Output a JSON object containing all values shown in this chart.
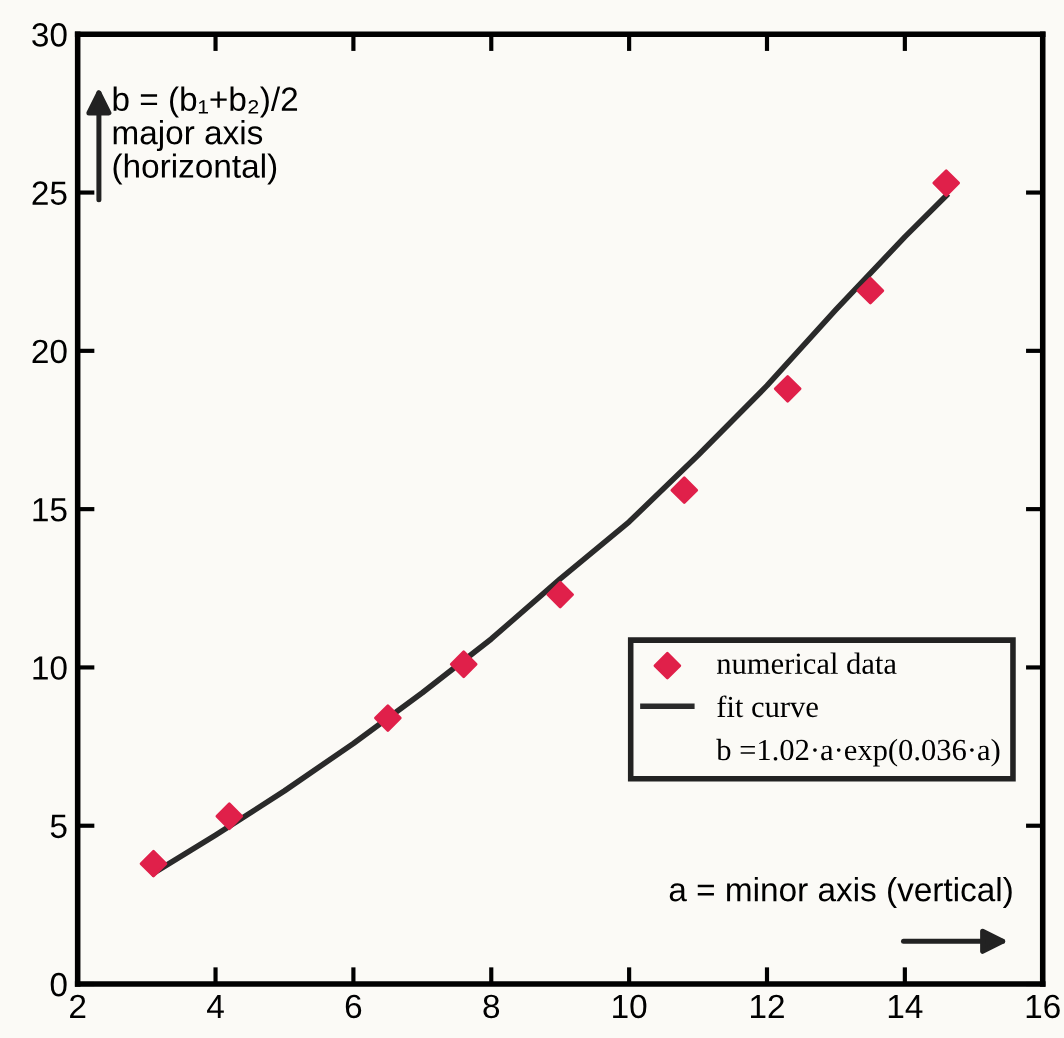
{
  "chart_data": {
    "type": "scatter",
    "xlabel": "a = minor axis (vertical)",
    "ylabel": "b = (b₁+b₂)/2\nmajor axis\n(horizontal)",
    "xlim": [
      2,
      16
    ],
    "ylim": [
      0,
      30
    ],
    "xticks": [
      2,
      4,
      6,
      8,
      10,
      12,
      14,
      16
    ],
    "yticks": [
      0,
      5,
      10,
      15,
      20,
      25,
      30
    ],
    "grid": false,
    "legend": "bottom right",
    "annotations": [
      "b =1.02·a·exp(0.036·a)"
    ],
    "series": [
      {
        "name": "numerical data",
        "marker": "diamond",
        "color": "#e0204a",
        "x": [
          3.1,
          4.2,
          6.5,
          7.6,
          9.0,
          10.8,
          12.3,
          13.5,
          14.6
        ],
        "values": [
          3.8,
          5.3,
          8.4,
          10.1,
          12.3,
          15.6,
          18.8,
          21.9,
          25.3
        ]
      },
      {
        "name": "fit curve",
        "type": "line",
        "color": "#2a2a2a",
        "line_style": "solid",
        "x": [
          3.1,
          4,
          5,
          6,
          7,
          8,
          9,
          10,
          11,
          12,
          13,
          14,
          14.6
        ],
        "values": [
          3.5,
          4.7,
          6.1,
          7.6,
          9.2,
          10.9,
          12.8,
          14.6,
          16.7,
          18.9,
          21.3,
          23.6,
          24.9
        ]
      }
    ]
  }
}
